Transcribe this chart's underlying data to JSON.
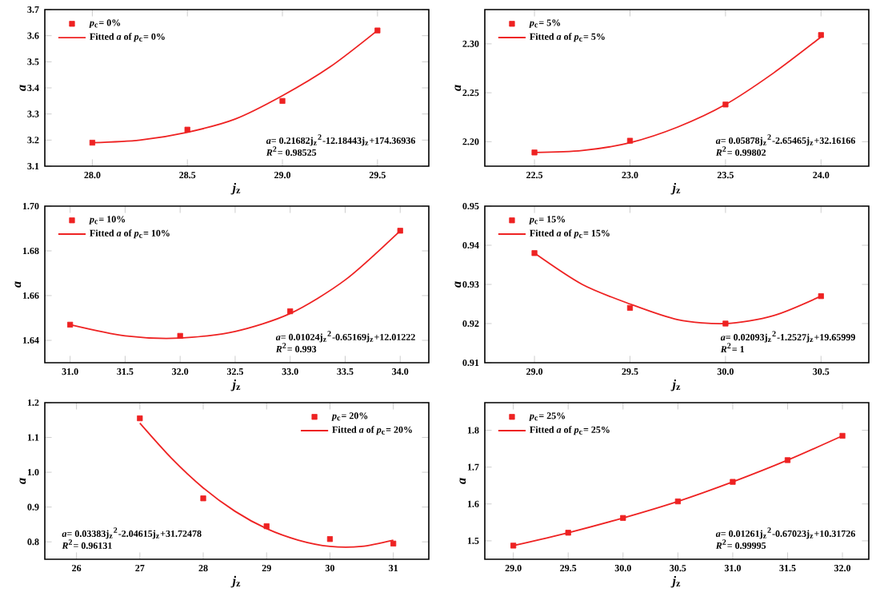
{
  "chart_data": [
    {
      "type": "scatter",
      "xlabel": "*j*$_{z}$",
      "ylabel": "*a*",
      "xlim": [
        27.75,
        29.77
      ],
      "ylim": [
        3.1,
        3.7
      ],
      "xticks": [
        {
          "value": 28,
          "label": "28.0"
        },
        {
          "value": 28.5,
          "label": "28.5"
        },
        {
          "value": 29,
          "label": "29.0"
        },
        {
          "value": 29.5,
          "label": "29.5"
        }
      ],
      "yticks": [
        3.1,
        3.2,
        3.3,
        3.4,
        3.5,
        3.6,
        3.7
      ],
      "legend": "top left",
      "grid": false,
      "series": [
        {
          "name": "*p*$_{c}$= 0%",
          "type": "scatter",
          "marker": "square",
          "color": "#ee2222",
          "x": [
            28.0,
            28.5,
            29.0,
            29.5
          ],
          "values": [
            3.19,
            3.24,
            3.35,
            3.62
          ]
        },
        {
          "name": "Fitted *a* of *p*$_{c}$= 0%",
          "type": "line",
          "marker": "none",
          "color": "#ee2222",
          "x": [
            28.0,
            28.25,
            28.5,
            28.75,
            29.0,
            29.25,
            29.5
          ],
          "values": [
            3.19,
            3.2,
            3.23,
            3.28,
            3.37,
            3.48,
            3.62
          ]
        }
      ],
      "annotations": [
        "*a*= 0.21682j$_{z}$$^{2}$-12.18443j$_{z}$+174.36936",
        "*R*$^{2}$= 0.98525"
      ]
    },
    {
      "type": "scatter",
      "xlabel": "*j*$_{z}$",
      "ylabel": "*a*",
      "xlim": [
        22.24,
        24.25
      ],
      "ylim": [
        2.175,
        2.335
      ],
      "xticks": [
        22.5,
        {
          "value": 23,
          "label": "23.0"
        },
        23.5,
        {
          "value": 24,
          "label": "24.0"
        }
      ],
      "yticks": [
        {
          "value": 2.2,
          "label": "2.20"
        },
        2.25,
        {
          "value": 2.3,
          "label": "2.30"
        }
      ],
      "legend": "top left",
      "grid": false,
      "series": [
        {
          "name": "*p*$_{c}$= 5%",
          "type": "scatter",
          "marker": "square",
          "color": "#ee2222",
          "x": [
            22.5,
            23.0,
            23.5,
            24.0
          ],
          "values": [
            2.189,
            2.201,
            2.238,
            2.309
          ]
        },
        {
          "name": "Fitted *a* of *p*$_{c}$= 5%",
          "type": "line",
          "marker": "none",
          "color": "#ee2222",
          "x": [
            22.5,
            22.75,
            23.0,
            23.25,
            23.5,
            23.75,
            24.0
          ],
          "values": [
            2.189,
            2.191,
            2.199,
            2.215,
            2.238,
            2.27,
            2.307
          ]
        }
      ],
      "annotations": [
        "*a*= 0.05878j$_{z}$$^{2}$-2.65465j$_{z}$+32.16166",
        "*R*$^{2}$= 0.99802"
      ]
    },
    {
      "type": "scatter",
      "xlabel": "*j*$_{z}$",
      "ylabel": "*a*",
      "xlim": [
        30.77,
        34.26
      ],
      "ylim": [
        1.63,
        1.7
      ],
      "xticks": [
        {
          "value": 31,
          "label": "31.0"
        },
        31.5,
        {
          "value": 32,
          "label": "32.0"
        },
        32.5,
        {
          "value": 33,
          "label": "33.0"
        },
        33.5,
        {
          "value": 34,
          "label": "34.0"
        }
      ],
      "yticks": [
        1.64,
        1.66,
        1.68,
        {
          "value": 1.7,
          "label": "1.70"
        }
      ],
      "legend": "top left",
      "grid": false,
      "series": [
        {
          "name": "*p*$_{c}$= 10%",
          "type": "scatter",
          "marker": "square",
          "color": "#ee2222",
          "x": [
            31,
            32,
            33,
            34
          ],
          "values": [
            1.647,
            1.642,
            1.653,
            1.689
          ]
        },
        {
          "name": "Fitted *a* of *p*$_{c}$= 10%",
          "type": "line",
          "marker": "none",
          "color": "#ee2222",
          "x": [
            31,
            31.5,
            32,
            32.5,
            33,
            33.5,
            34
          ],
          "values": [
            1.647,
            1.642,
            1.641,
            1.644,
            1.652,
            1.667,
            1.689
          ]
        }
      ],
      "annotations": [
        "*a*= 0.01024j$_{z}$$^{2}$-0.65169j$_{z}$+12.01222",
        "*R*$^{2}$= 0.993"
      ]
    },
    {
      "type": "scatter",
      "xlabel": "*j*$_{z}$",
      "ylabel": "*a*",
      "xlim": [
        28.74,
        30.75
      ],
      "ylim": [
        0.91,
        0.95
      ],
      "xticks": [
        {
          "value": 29,
          "label": "29.0"
        },
        29.5,
        {
          "value": 30,
          "label": "30.0"
        },
        30.5
      ],
      "yticks": [
        0.91,
        0.92,
        0.93,
        0.94,
        0.95
      ],
      "legend": "top left",
      "grid": false,
      "series": [
        {
          "name": "*p*$_{c}$= 15%",
          "type": "scatter",
          "marker": "square",
          "color": "#ee2222",
          "x": [
            29.0,
            29.5,
            30.0,
            30.5
          ],
          "values": [
            0.938,
            0.924,
            0.92,
            0.927
          ]
        },
        {
          "name": "Fitted *a* of *p*$_{c}$= 15%",
          "type": "line",
          "marker": "none",
          "color": "#ee2222",
          "x": [
            29.0,
            29.25,
            29.5,
            29.75,
            30.0,
            30.25,
            30.5
          ],
          "values": [
            0.938,
            0.93,
            0.925,
            0.921,
            0.92,
            0.922,
            0.927
          ]
        }
      ],
      "annotations": [
        "*a*= 0.02093j$_{z}$$^{2}$-1.2527j$_{z}$+19.65999",
        "*R*$^{2}$= 1"
      ]
    },
    {
      "type": "scatter",
      "xlabel": "*j*$_{z}$",
      "ylabel": "*a*",
      "xlim": [
        25.5,
        31.56
      ],
      "ylim": [
        0.75,
        1.2
      ],
      "xticks": [
        26,
        27,
        28,
        29,
        30,
        31
      ],
      "yticks": [
        0.8,
        0.9,
        {
          "value": 1,
          "label": "1.0"
        },
        1.1,
        1.2
      ],
      "legend": "top right",
      "grid": false,
      "series": [
        {
          "name": "*p*$_{c}$= 20%",
          "type": "scatter",
          "marker": "square",
          "color": "#ee2222",
          "x": [
            27,
            28,
            29,
            30,
            31
          ],
          "values": [
            1.155,
            0.925,
            0.845,
            0.808,
            0.795
          ]
        },
        {
          "name": "Fitted *a* of *p*$_{c}$= 20%",
          "type": "line",
          "marker": "none",
          "color": "#ee2222",
          "x": [
            27,
            27.5,
            28,
            28.5,
            29,
            29.5,
            30,
            30.5,
            31
          ],
          "values": [
            1.141,
            1.04,
            0.955,
            0.888,
            0.838,
            0.805,
            0.787,
            0.787,
            0.805
          ]
        }
      ],
      "annotations": [
        "*a*= 0.03383j$_{z}$$^{2}$-2.04615j$_{z}$+31.72478",
        "*R*$^{2}$= 0.96131"
      ]
    },
    {
      "type": "scatter",
      "xlabel": "*j*$_{z}$",
      "ylabel": "*a*",
      "xlim": [
        28.74,
        32.24
      ],
      "ylim": [
        1.45,
        1.875
      ],
      "xticks": [
        {
          "value": 29,
          "label": "29.0"
        },
        29.5,
        {
          "value": 30,
          "label": "30.0"
        },
        30.5,
        {
          "value": 31,
          "label": "31.0"
        },
        31.5,
        {
          "value": 32,
          "label": "32.0"
        }
      ],
      "yticks": [
        1.5,
        1.6,
        1.7,
        1.8
      ],
      "legend": "top left",
      "grid": false,
      "series": [
        {
          "name": "*p*$_{c}$= 25%",
          "type": "scatter",
          "marker": "square",
          "color": "#ee2222",
          "x": [
            29.0,
            29.5,
            30.0,
            30.5,
            31.0,
            31.5,
            32.0
          ],
          "values": [
            1.487,
            1.522,
            1.562,
            1.607,
            1.66,
            1.719,
            1.785
          ]
        },
        {
          "name": "Fitted *a* of *p*$_{c}$= 25%",
          "type": "line",
          "marker": "none",
          "color": "#ee2222",
          "x": [
            29.0,
            29.5,
            30.0,
            30.5,
            31.0,
            31.5,
            32.0
          ],
          "values": [
            1.487,
            1.522,
            1.562,
            1.607,
            1.66,
            1.719,
            1.785
          ]
        }
      ],
      "annotations": [
        "*a*= 0.01261j$_{z}$$^{2}$-0.67023j$_{z}$+10.31726",
        "*R*$^{2}$= 0.99995"
      ]
    }
  ]
}
